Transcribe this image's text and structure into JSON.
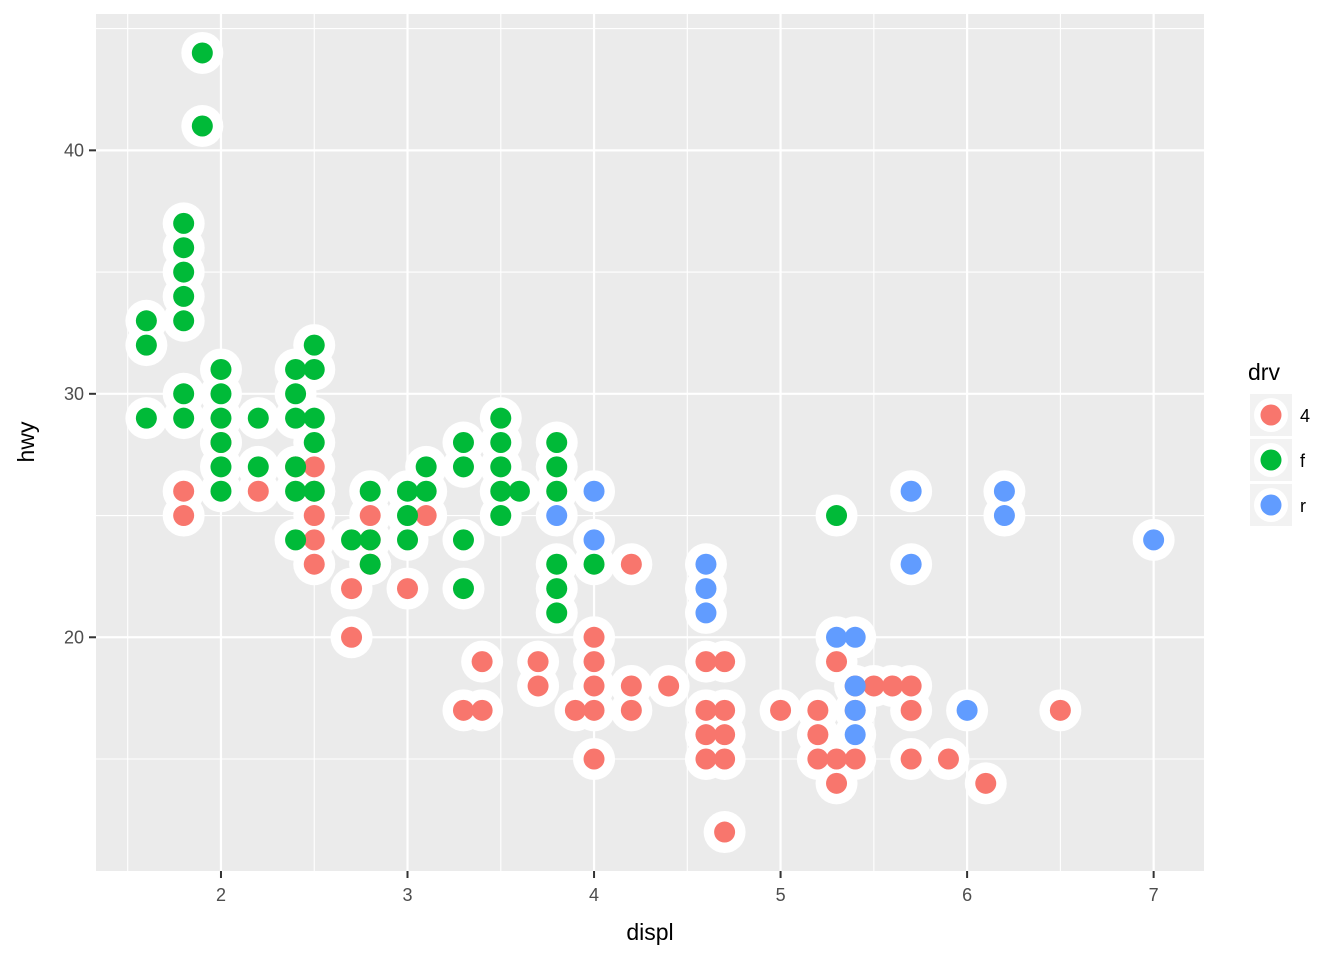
{
  "chart_data": {
    "type": "scatter",
    "title": "",
    "xlabel": "displ",
    "ylabel": "hwy",
    "xlim": [
      1.33,
      7.27
    ],
    "ylim": [
      10.4,
      45.6
    ],
    "x_ticks": [
      2,
      3,
      4,
      5,
      6,
      7
    ],
    "x_tick_labels": [
      "2",
      "3",
      "4",
      "5",
      "6",
      "7"
    ],
    "y_ticks": [
      20,
      30,
      40
    ],
    "y_tick_labels": [
      "20",
      "30",
      "40"
    ],
    "grid": true,
    "point_style": "colored dot with white halo",
    "legend": {
      "title": "drv",
      "placement": "right",
      "entries": [
        {
          "label": "4",
          "color": "#F8766D"
        },
        {
          "label": "f",
          "color": "#00BA38"
        },
        {
          "label": "r",
          "color": "#619CFF"
        }
      ]
    },
    "series": [
      {
        "name": "4",
        "color": "#F8766D",
        "points": [
          [
            1.8,
            26
          ],
          [
            1.8,
            25
          ],
          [
            2.0,
            28
          ],
          [
            2.2,
            26
          ],
          [
            2.4,
            27
          ],
          [
            2.5,
            27
          ],
          [
            2.5,
            26
          ],
          [
            2.5,
            25
          ],
          [
            2.5,
            24
          ],
          [
            2.5,
            23
          ],
          [
            2.7,
            22
          ],
          [
            2.7,
            20
          ],
          [
            2.8,
            25
          ],
          [
            2.8,
            24
          ],
          [
            2.8,
            23
          ],
          [
            3.0,
            22
          ],
          [
            3.1,
            25
          ],
          [
            3.4,
            19
          ],
          [
            3.4,
            17
          ],
          [
            3.3,
            17
          ],
          [
            3.7,
            19
          ],
          [
            3.7,
            18
          ],
          [
            3.9,
            17
          ],
          [
            4.0,
            20
          ],
          [
            4.0,
            19
          ],
          [
            4.0,
            18
          ],
          [
            4.0,
            17
          ],
          [
            4.0,
            15
          ],
          [
            4.2,
            18
          ],
          [
            4.2,
            17
          ],
          [
            4.2,
            23
          ],
          [
            4.4,
            18
          ],
          [
            4.6,
            19
          ],
          [
            4.6,
            17
          ],
          [
            4.6,
            16
          ],
          [
            4.6,
            15
          ],
          [
            4.7,
            19
          ],
          [
            4.7,
            17
          ],
          [
            4.7,
            16
          ],
          [
            4.7,
            15
          ],
          [
            4.7,
            12
          ],
          [
            5.0,
            17
          ],
          [
            5.2,
            17
          ],
          [
            5.2,
            16
          ],
          [
            5.2,
            15
          ],
          [
            5.3,
            19
          ],
          [
            5.3,
            15
          ],
          [
            5.3,
            14
          ],
          [
            5.4,
            18
          ],
          [
            5.4,
            17
          ],
          [
            5.4,
            15
          ],
          [
            5.5,
            18
          ],
          [
            5.6,
            18
          ],
          [
            5.7,
            18
          ],
          [
            5.7,
            17
          ],
          [
            5.7,
            15
          ],
          [
            5.9,
            15
          ],
          [
            6.1,
            14
          ],
          [
            6.5,
            17
          ]
        ]
      },
      {
        "name": "f",
        "color": "#00BA38",
        "points": [
          [
            1.6,
            33
          ],
          [
            1.6,
            32
          ],
          [
            1.6,
            29
          ],
          [
            1.8,
            37
          ],
          [
            1.8,
            36
          ],
          [
            1.8,
            35
          ],
          [
            1.8,
            34
          ],
          [
            1.8,
            33
          ],
          [
            1.8,
            30
          ],
          [
            1.8,
            29
          ],
          [
            1.9,
            44
          ],
          [
            1.9,
            41
          ],
          [
            2.0,
            31
          ],
          [
            2.0,
            30
          ],
          [
            2.0,
            29
          ],
          [
            2.0,
            28
          ],
          [
            2.0,
            27
          ],
          [
            2.0,
            26
          ],
          [
            2.2,
            29
          ],
          [
            2.2,
            27
          ],
          [
            2.4,
            31
          ],
          [
            2.4,
            30
          ],
          [
            2.4,
            29
          ],
          [
            2.4,
            27
          ],
          [
            2.4,
            26
          ],
          [
            2.4,
            24
          ],
          [
            2.5,
            32
          ],
          [
            2.5,
            31
          ],
          [
            2.5,
            29
          ],
          [
            2.5,
            28
          ],
          [
            2.5,
            26
          ],
          [
            2.7,
            24
          ],
          [
            2.8,
            26
          ],
          [
            2.8,
            24
          ],
          [
            2.8,
            23
          ],
          [
            3.0,
            26
          ],
          [
            3.0,
            25
          ],
          [
            3.0,
            24
          ],
          [
            3.1,
            27
          ],
          [
            3.1,
            26
          ],
          [
            3.3,
            28
          ],
          [
            3.3,
            27
          ],
          [
            3.3,
            24
          ],
          [
            3.3,
            22
          ],
          [
            3.5,
            29
          ],
          [
            3.5,
            28
          ],
          [
            3.5,
            27
          ],
          [
            3.5,
            26
          ],
          [
            3.5,
            25
          ],
          [
            3.6,
            26
          ],
          [
            3.8,
            28
          ],
          [
            3.8,
            27
          ],
          [
            3.8,
            26
          ],
          [
            3.8,
            23
          ],
          [
            3.8,
            22
          ],
          [
            3.8,
            21
          ],
          [
            4.0,
            23
          ],
          [
            5.3,
            25
          ]
        ]
      },
      {
        "name": "r",
        "color": "#619CFF",
        "points": [
          [
            3.8,
            25
          ],
          [
            4.0,
            26
          ],
          [
            4.0,
            24
          ],
          [
            4.6,
            23
          ],
          [
            4.6,
            22
          ],
          [
            4.6,
            21
          ],
          [
            5.3,
            20
          ],
          [
            5.4,
            20
          ],
          [
            5.4,
            18
          ],
          [
            5.4,
            17
          ],
          [
            5.4,
            16
          ],
          [
            5.7,
            26
          ],
          [
            5.7,
            23
          ],
          [
            6.0,
            17
          ],
          [
            6.2,
            26
          ],
          [
            6.2,
            25
          ],
          [
            7.0,
            24
          ]
        ]
      }
    ]
  }
}
